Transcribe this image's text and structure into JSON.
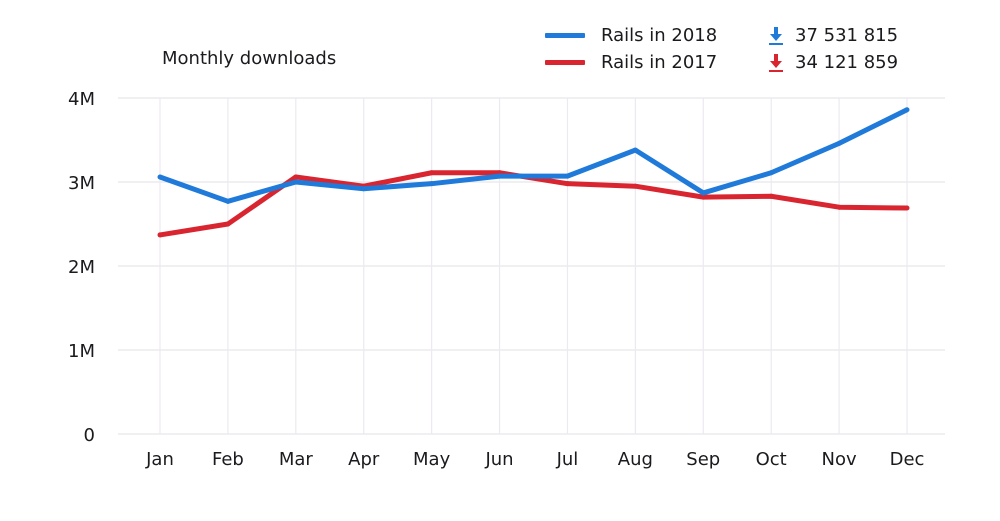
{
  "chart_data": {
    "type": "line",
    "title": "Monthly downloads",
    "xlabel": "",
    "ylabel": "",
    "categories": [
      "Jan",
      "Feb",
      "Mar",
      "Apr",
      "May",
      "Jun",
      "Jul",
      "Aug",
      "Sep",
      "Oct",
      "Nov",
      "Dec"
    ],
    "ylim": [
      0,
      4000000
    ],
    "yticks": [
      0,
      1000000,
      2000000,
      3000000,
      4000000
    ],
    "ytick_labels": [
      "0",
      "1M",
      "2M",
      "3M",
      "4M"
    ],
    "grid": true,
    "legend_position": "top-right",
    "series": [
      {
        "name": "Rails in 2018",
        "color": "#1f7ad9",
        "total": "37 531 815",
        "values": [
          3060000,
          2770000,
          3000000,
          2920000,
          2980000,
          3070000,
          3070000,
          3380000,
          2870000,
          3110000,
          3460000,
          3860000
        ]
      },
      {
        "name": "Rails in 2017",
        "color": "#d9252f",
        "total": "34 121 859",
        "values": [
          2370000,
          2500000,
          3060000,
          2950000,
          3110000,
          3110000,
          2980000,
          2950000,
          2820000,
          2830000,
          2700000,
          2690000
        ]
      }
    ]
  },
  "legend": {
    "icon": "download-arrow-icon"
  }
}
